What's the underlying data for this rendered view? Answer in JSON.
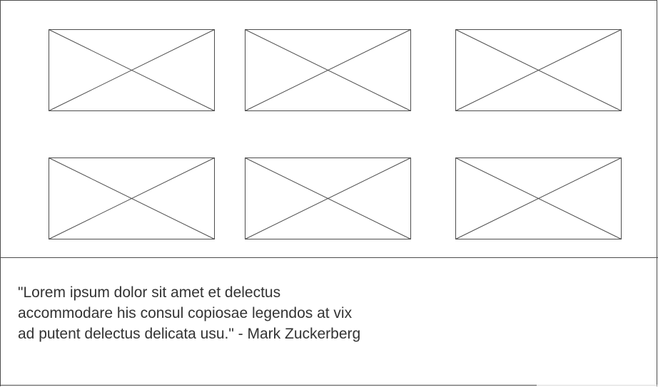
{
  "gallery": {
    "placeholders": [
      {
        "label": "image-placeholder-1"
      },
      {
        "label": "image-placeholder-2"
      },
      {
        "label": "image-placeholder-3"
      },
      {
        "label": "image-placeholder-4"
      },
      {
        "label": "image-placeholder-5"
      },
      {
        "label": "image-placeholder-6"
      }
    ]
  },
  "quote": {
    "text": "\"Lorem ipsum dolor sit amet et delectus\naccommodare his consul copiosae legendos at vix\nad putent delectus delicata usu.\" - Mark Zuckerberg"
  },
  "colors": {
    "line": "#4d4d4d",
    "text": "#333333",
    "background": "#ffffff"
  }
}
